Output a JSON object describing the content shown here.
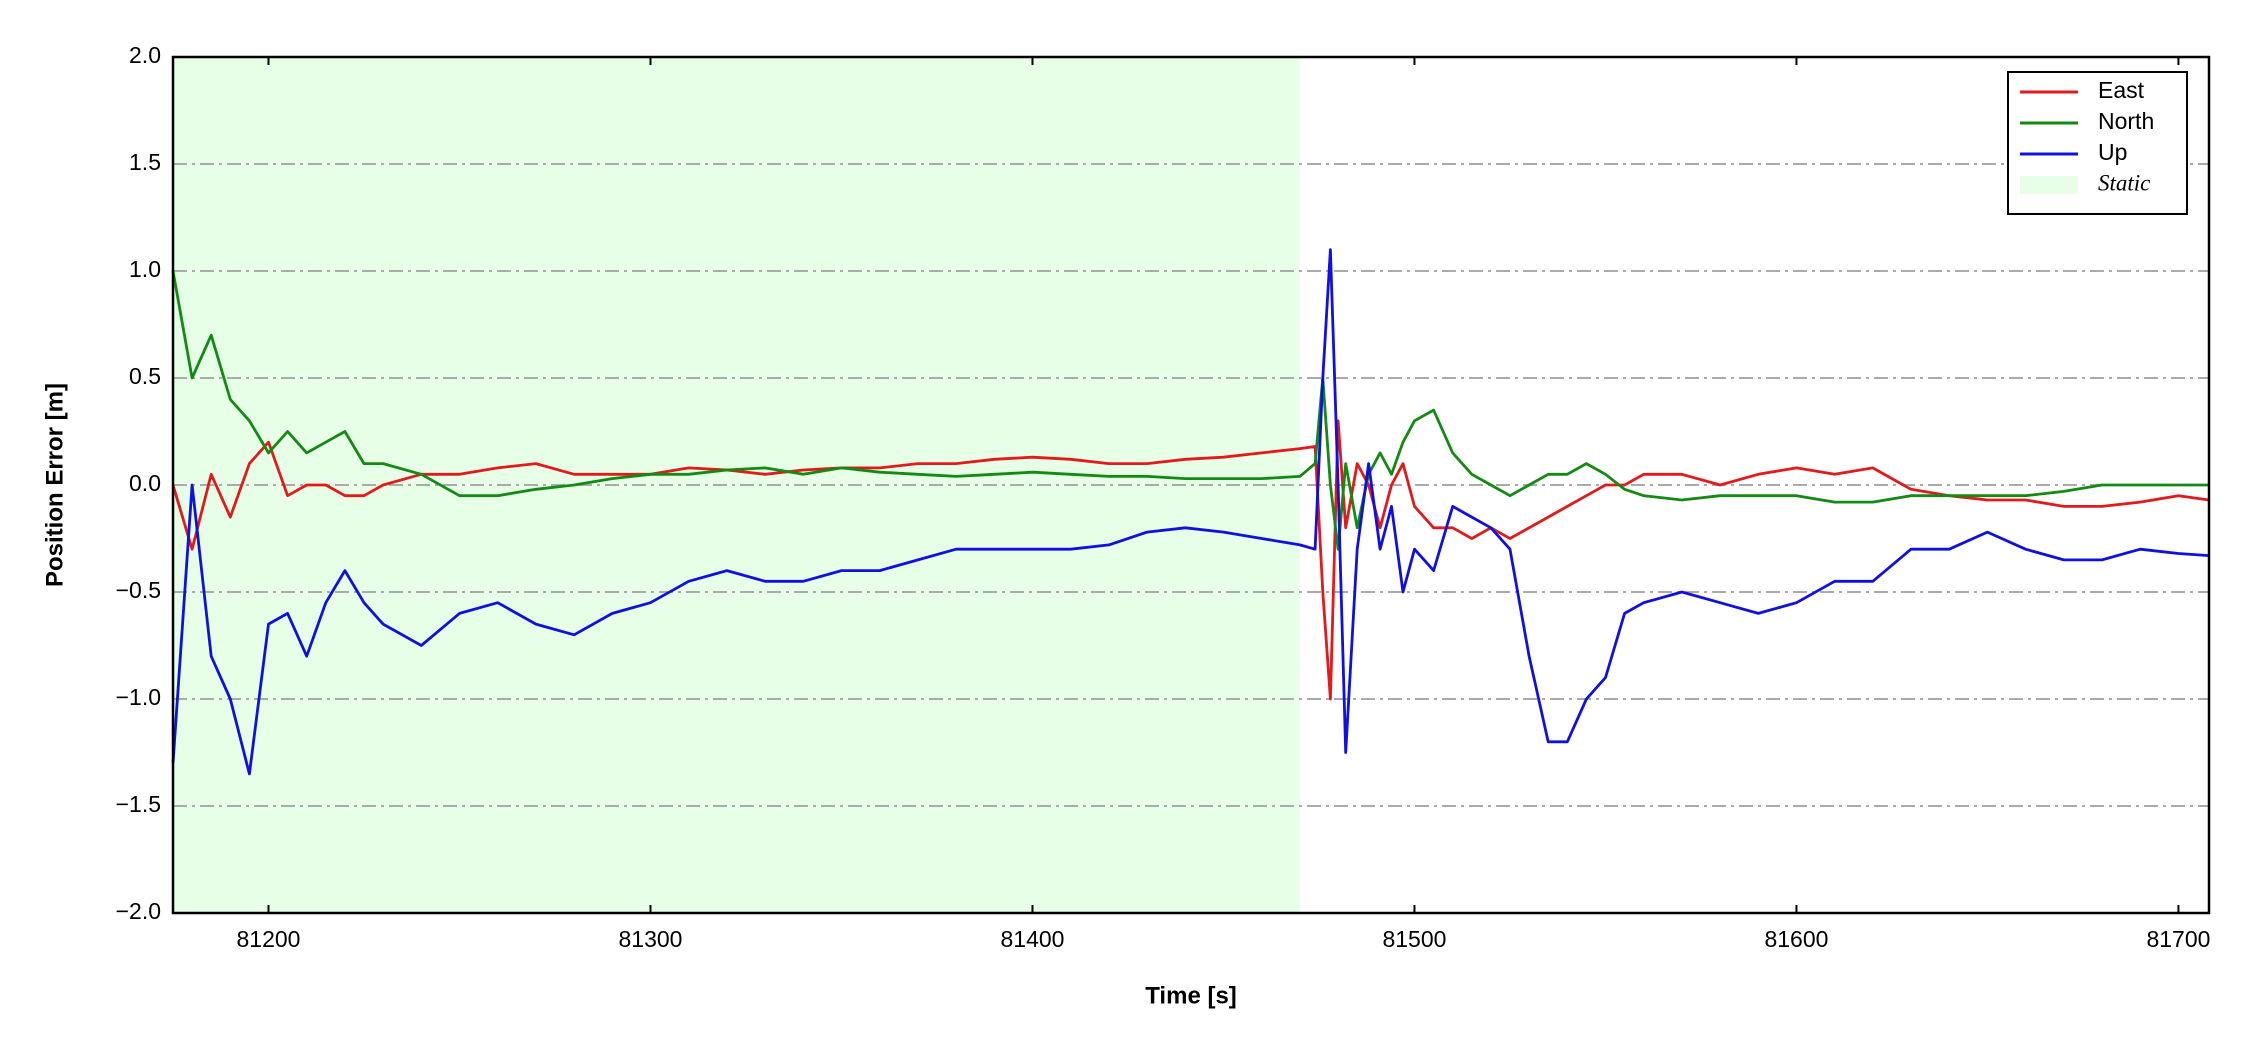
{
  "chart_data": {
    "type": "line",
    "xlabel": "Time [s]",
    "ylabel": "Position Error [m]",
    "x": [
      81175,
      81180,
      81185,
      81190,
      81195,
      81200,
      81205,
      81210,
      81215,
      81220,
      81225,
      81230,
      81240,
      81250,
      81260,
      81270,
      81280,
      81290,
      81300,
      81310,
      81320,
      81330,
      81340,
      81350,
      81360,
      81370,
      81380,
      81390,
      81400,
      81410,
      81420,
      81430,
      81440,
      81450,
      81460,
      81470,
      81474,
      81476,
      81478,
      81480,
      81482,
      81485,
      81488,
      81491,
      81494,
      81497,
      81500,
      81505,
      81510,
      81515,
      81520,
      81525,
      81530,
      81535,
      81540,
      81545,
      81550,
      81555,
      81560,
      81570,
      81580,
      81590,
      81600,
      81610,
      81620,
      81630,
      81640,
      81650,
      81660,
      81670,
      81680,
      81690,
      81700,
      81708
    ],
    "series": [
      {
        "name": "East",
        "color": "#e31a1c",
        "values": [
          0.0,
          -0.3,
          0.05,
          -0.15,
          0.1,
          0.2,
          -0.05,
          0.0,
          0.0,
          -0.05,
          -0.05,
          0.0,
          0.05,
          0.05,
          0.08,
          0.1,
          0.05,
          0.05,
          0.05,
          0.08,
          0.07,
          0.05,
          0.07,
          0.08,
          0.08,
          0.1,
          0.1,
          0.12,
          0.13,
          0.12,
          0.1,
          0.1,
          0.12,
          0.13,
          0.15,
          0.17,
          0.18,
          -0.5,
          -1.0,
          0.3,
          -0.2,
          0.1,
          0.0,
          -0.2,
          0.0,
          0.1,
          -0.1,
          -0.2,
          -0.2,
          -0.25,
          -0.2,
          -0.25,
          -0.2,
          -0.15,
          -0.1,
          -0.05,
          0.0,
          0.0,
          0.05,
          0.05,
          0.0,
          0.05,
          0.08,
          0.05,
          0.08,
          -0.02,
          -0.05,
          -0.07,
          -0.07,
          -0.1,
          -0.1,
          -0.08,
          -0.05,
          -0.07
        ]
      },
      {
        "name": "North",
        "color": "#138a13",
        "values": [
          1.0,
          0.5,
          0.7,
          0.4,
          0.3,
          0.15,
          0.25,
          0.15,
          0.2,
          0.25,
          0.1,
          0.1,
          0.05,
          -0.05,
          -0.05,
          -0.02,
          0.0,
          0.03,
          0.05,
          0.05,
          0.07,
          0.08,
          0.05,
          0.08,
          0.06,
          0.05,
          0.04,
          0.05,
          0.06,
          0.05,
          0.04,
          0.04,
          0.03,
          0.03,
          0.03,
          0.04,
          0.1,
          0.5,
          0.0,
          -0.3,
          0.1,
          -0.2,
          0.05,
          0.15,
          0.05,
          0.2,
          0.3,
          0.35,
          0.15,
          0.05,
          0.0,
          -0.05,
          0.0,
          0.05,
          0.05,
          0.1,
          0.05,
          -0.02,
          -0.05,
          -0.07,
          -0.05,
          -0.05,
          -0.05,
          -0.08,
          -0.08,
          -0.05,
          -0.05,
          -0.05,
          -0.05,
          -0.03,
          0.0,
          0.0,
          0.0,
          0.0
        ]
      },
      {
        "name": "Up",
        "color": "#1010e0",
        "values": [
          -1.3,
          0.0,
          -0.8,
          -1.0,
          -1.35,
          -0.65,
          -0.6,
          -0.8,
          -0.55,
          -0.4,
          -0.55,
          -0.65,
          -0.75,
          -0.6,
          -0.55,
          -0.65,
          -0.7,
          -0.6,
          -0.55,
          -0.45,
          -0.4,
          -0.45,
          -0.45,
          -0.4,
          -0.4,
          -0.35,
          -0.3,
          -0.3,
          -0.3,
          -0.3,
          -0.28,
          -0.22,
          -0.2,
          -0.22,
          -0.25,
          -0.28,
          -0.3,
          0.5,
          1.1,
          0.0,
          -1.25,
          -0.3,
          0.1,
          -0.3,
          -0.1,
          -0.5,
          -0.3,
          -0.4,
          -0.1,
          -0.15,
          -0.2,
          -0.3,
          -0.8,
          -1.2,
          -1.2,
          -1.0,
          -0.9,
          -0.6,
          -0.55,
          -0.5,
          -0.55,
          -0.6,
          -0.55,
          -0.45,
          -0.45,
          -0.3,
          -0.3,
          -0.22,
          -0.3,
          -0.35,
          -0.35,
          -0.3,
          -0.32,
          -0.33
        ]
      }
    ],
    "shaded_regions": [
      {
        "name": "Static",
        "color": "#e6ffe6",
        "x": [
          81175,
          81470
        ]
      }
    ],
    "xlim": [
      81175,
      81708
    ],
    "xticks": [
      81200,
      81300,
      81400,
      81500,
      81600,
      81700
    ],
    "ylim": [
      -2.0,
      2.0
    ],
    "yticks": [
      {
        "value": -2.0,
        "label": "−2.0"
      },
      {
        "value": -1.5,
        "label": "−1.5"
      },
      {
        "value": -1.0,
        "label": "−1.0"
      },
      {
        "value": -0.5,
        "label": "−0.5"
      },
      {
        "value": 0.0,
        "label": "0.0"
      },
      {
        "value": 0.5,
        "label": "0.5"
      },
      {
        "value": 1.0,
        "label": "1.0"
      },
      {
        "value": 1.5,
        "label": "1.5"
      },
      {
        "value": 2.0,
        "label": "2.0"
      }
    ],
    "grid": true,
    "legend": "upper right"
  }
}
